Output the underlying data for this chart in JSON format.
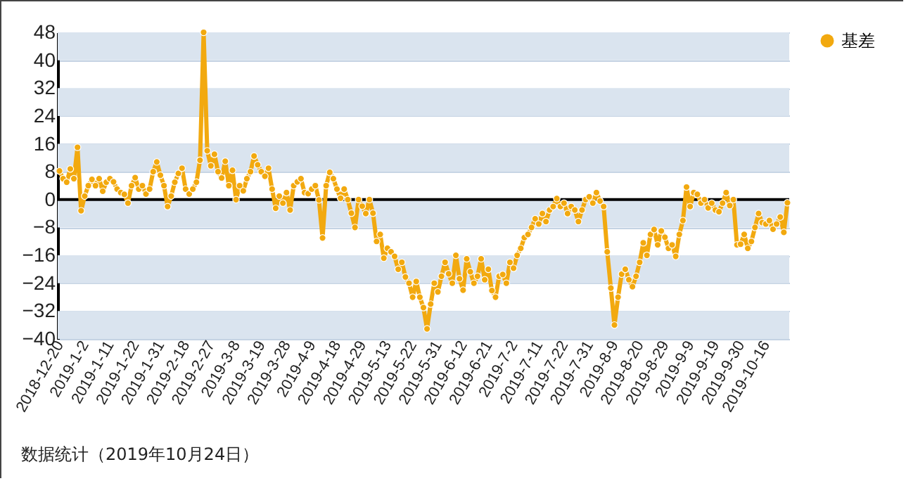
{
  "chart_data": {
    "type": "line",
    "categories": [
      "2018-12-20",
      null,
      null,
      null,
      null,
      null,
      null,
      "2019-1-2",
      null,
      null,
      null,
      null,
      null,
      null,
      "2019-1-11",
      null,
      null,
      null,
      null,
      null,
      null,
      "2019-1-22",
      null,
      null,
      null,
      null,
      null,
      null,
      "2019-1-31",
      null,
      null,
      null,
      null,
      null,
      null,
      "2019-2-18",
      null,
      null,
      null,
      null,
      null,
      null,
      "2019-2-27",
      null,
      null,
      null,
      null,
      null,
      null,
      "2019-3-8",
      null,
      null,
      null,
      null,
      null,
      null,
      "2019-3-19",
      null,
      null,
      null,
      null,
      null,
      null,
      "2019-3-28",
      null,
      null,
      null,
      null,
      null,
      null,
      "2019-4-9",
      null,
      null,
      null,
      null,
      null,
      null,
      "2019-4-18",
      null,
      null,
      null,
      null,
      null,
      null,
      "2019-4-29",
      null,
      null,
      null,
      null,
      null,
      null,
      "2019-5-13",
      null,
      null,
      null,
      null,
      null,
      null,
      "2019-5-22",
      null,
      null,
      null,
      null,
      null,
      null,
      "2019-5-31",
      null,
      null,
      null,
      null,
      null,
      null,
      "2019-6-12",
      null,
      null,
      null,
      null,
      null,
      null,
      "2019-6-21",
      null,
      null,
      null,
      null,
      null,
      null,
      "2019-7-2",
      null,
      null,
      null,
      null,
      null,
      null,
      "2019-7-11",
      null,
      null,
      null,
      null,
      null,
      null,
      "2019-7-22",
      null,
      null,
      null,
      null,
      null,
      null,
      "2019-7-31",
      null,
      null,
      null,
      null,
      null,
      null,
      "2019-8-9",
      null,
      null,
      null,
      null,
      null,
      null,
      "2019-8-20",
      null,
      null,
      null,
      null,
      null,
      null,
      "2019-8-29",
      null,
      null,
      null,
      null,
      null,
      null,
      "2019-9-9",
      null,
      null,
      null,
      null,
      null,
      null,
      "2019-9-19",
      null,
      null,
      null,
      null,
      null,
      null,
      "2019-9-30",
      null,
      null,
      null,
      null,
      null,
      null,
      "2019-10-16",
      null,
      null,
      null,
      null,
      null,
      null
    ],
    "series": [
      {
        "name": "基差",
        "color": "#f2a90f",
        "values": [
          8.2,
          6,
          5,
          8.8,
          6,
          15,
          -3.2,
          1,
          4,
          5.8,
          4,
          6,
          2.4,
          5,
          6,
          5.1,
          3,
          2,
          1.5,
          -1,
          4,
          6.3,
          3,
          4,
          1.6,
          3,
          8,
          10.8,
          7,
          4,
          -2,
          1,
          5,
          7.5,
          9,
          3,
          1.6,
          3,
          5,
          11.3,
          48,
          14,
          9.7,
          13,
          8,
          6.2,
          11,
          4,
          8.4,
          0,
          4,
          2.5,
          6,
          8,
          12.5,
          10,
          8,
          6.7,
          9,
          3,
          -2.5,
          1,
          -1,
          2,
          -3,
          4,
          5.1,
          6,
          2,
          1.7,
          3,
          4,
          -0.1,
          -11,
          4,
          7.8,
          6,
          3,
          0.4,
          3,
          0,
          -3.9,
          -8,
          0,
          -1.9,
          -4,
          0,
          -3.9,
          -12,
          -10,
          -16.8,
          -14,
          -15,
          -16.3,
          -20,
          -18,
          -22.2,
          -24,
          -28,
          -23.5,
          -28,
          -31,
          -37.1,
          -30,
          -24,
          -26.5,
          -22,
          -18,
          -21.3,
          -24,
          -16,
          -22.7,
          -26,
          -17,
          -20.7,
          -24,
          -22,
          -17,
          -23,
          -20,
          -26.1,
          -28,
          -22,
          -21.5,
          -24,
          -18,
          -19.7,
          -16,
          -14,
          -10.9,
          -10,
          -8,
          -5.5,
          -7,
          -4,
          -6.3,
          -3,
          -2,
          0.3,
          -2,
          -1,
          -4,
          -2,
          -3,
          -6.3,
          -3,
          0,
          0.8,
          -1,
          2,
          -0.4,
          -2,
          -15,
          -25.4,
          -36,
          -28,
          -21.4,
          -20,
          -23,
          -25,
          -22,
          -18,
          -12.4,
          -16,
          -10,
          -8.6,
          -13,
          -9,
          -10.8,
          -14,
          -13,
          -16.3,
          -10,
          -6,
          3.6,
          -2,
          2,
          1.5,
          -1,
          0,
          -2.4,
          -1,
          -3,
          -3.5,
          -1,
          2,
          -1.7,
          0,
          -13,
          -12.8,
          -10,
          -14,
          -12,
          -8,
          -4,
          -6.6,
          -7,
          -6,
          -8.5,
          -7,
          -5,
          -9.4,
          -0.9
        ]
      }
    ],
    "ylim": [
      -40,
      48
    ],
    "yticks": [
      -40,
      -32,
      -24,
      -16,
      -8,
      0,
      8,
      16,
      24,
      32,
      40,
      48
    ],
    "grid": "y",
    "legend": "right",
    "marker": "circle",
    "line_style": "solid",
    "ref_lines": [
      {
        "axis": "y",
        "value": 0,
        "color": "#000000"
      }
    ],
    "annotations": [
      "数据统计（2019年10月24日）"
    ]
  }
}
